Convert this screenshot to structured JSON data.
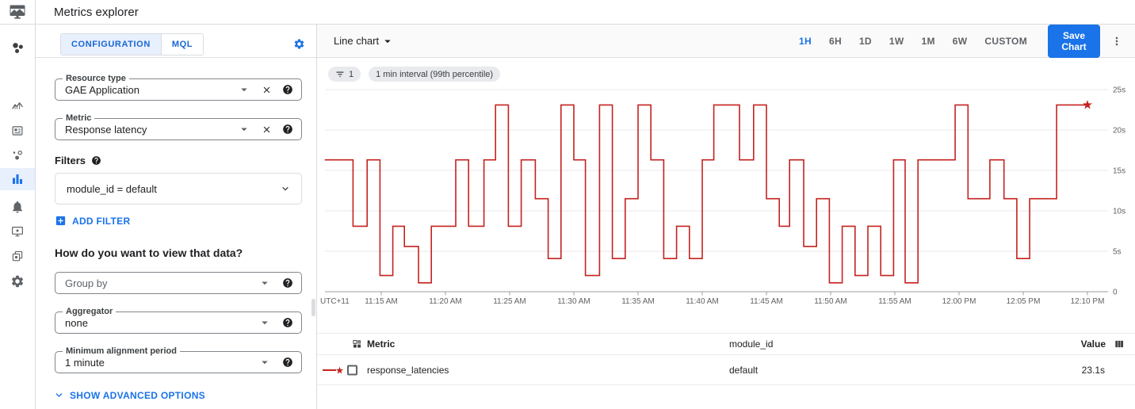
{
  "header": {
    "title": "Metrics explorer"
  },
  "sidebar": {
    "items": [
      {
        "icon": "overview-cluster-icon",
        "active": false
      },
      {
        "icon": "dashboards-chart-icon",
        "active": false
      },
      {
        "icon": "integrations-card-icon",
        "active": false
      },
      {
        "icon": "services-bubbles-icon",
        "active": false
      },
      {
        "icon": "metrics-explorer-bars-icon",
        "active": true
      },
      {
        "icon": "alerting-bell-icon",
        "active": false
      },
      {
        "icon": "uptime-monitor-icon",
        "active": false
      },
      {
        "icon": "groups-layers-icon",
        "active": false
      },
      {
        "icon": "settings-gear-icon",
        "active": false
      }
    ]
  },
  "config_panel": {
    "tabs": [
      {
        "label": "CONFIGURATION",
        "active": true
      },
      {
        "label": "MQL",
        "active": false
      }
    ],
    "resource_type": {
      "label": "Resource type",
      "value": "GAE Application"
    },
    "metric": {
      "label": "Metric",
      "value": "Response latency"
    },
    "filters": {
      "label": "Filters",
      "chip": "module_id = default",
      "add_label": "ADD FILTER"
    },
    "view_heading": "How do you want to view that data?",
    "group_by": {
      "placeholder": "Group by"
    },
    "aggregator": {
      "label": "Aggregator",
      "value": "none"
    },
    "alignment": {
      "label": "Minimum alignment period",
      "value": "1 minute"
    },
    "advanced_label": "SHOW ADVANCED OPTIONS"
  },
  "toolbar": {
    "chart_type": "Line chart",
    "ranges": [
      "1H",
      "6H",
      "1D",
      "1W",
      "1M",
      "6W",
      "CUSTOM"
    ],
    "active_range": "1H",
    "save_label": "Save Chart"
  },
  "chips": {
    "filter_count": "1",
    "interval": "1 min interval (99th percentile)"
  },
  "chart_data": {
    "type": "line",
    "subtype": "step",
    "title": "",
    "xlabel": "",
    "ylabel": "",
    "legend_position": "table-below",
    "grid": "horizontal-only",
    "y_axis": {
      "side": "right",
      "min": 0,
      "max": 25,
      "values": [
        0,
        5,
        10,
        15,
        20,
        25
      ],
      "ticks": [
        "0",
        "5s",
        "10s",
        "15s",
        "20s",
        "25s"
      ]
    },
    "x_axis": {
      "tz_label": "UTC+11",
      "window_minutes": 60,
      "ticks": [
        {
          "m": 675,
          "label": "11:15 AM"
        },
        {
          "m": 680,
          "label": "11:20 AM"
        },
        {
          "m": 685,
          "label": "11:25 AM"
        },
        {
          "m": 690,
          "label": "11:30 AM"
        },
        {
          "m": 695,
          "label": "11:35 AM"
        },
        {
          "m": 700,
          "label": "11:40 AM"
        },
        {
          "m": 705,
          "label": "11:45 AM"
        },
        {
          "m": 710,
          "label": "11:50 AM"
        },
        {
          "m": 715,
          "label": "11:55 AM"
        },
        {
          "m": 720,
          "label": "12:00 PM"
        },
        {
          "m": 725,
          "label": "12:05 PM"
        },
        {
          "m": 730,
          "label": "12:10 PM"
        }
      ]
    },
    "series": [
      {
        "name": "response_latencies",
        "module_id": "default",
        "color": "#c5221f",
        "unit": "s",
        "end_marker": "star",
        "end_min": 730,
        "points": [
          [
            670.6,
            16.3
          ],
          [
            672.8,
            8.1
          ],
          [
            673.9,
            16.3
          ],
          [
            674.9,
            2.0
          ],
          [
            675.9,
            8.1
          ],
          [
            676.8,
            5.6
          ],
          [
            677.9,
            1.1
          ],
          [
            678.9,
            8.1
          ],
          [
            680.8,
            16.3
          ],
          [
            681.8,
            8.1
          ],
          [
            683.0,
            16.3
          ],
          [
            683.9,
            23.1
          ],
          [
            684.9,
            8.1
          ],
          [
            685.9,
            16.3
          ],
          [
            687.0,
            11.5
          ],
          [
            688.0,
            4.1
          ],
          [
            689.0,
            23.1
          ],
          [
            690.0,
            16.3
          ],
          [
            690.9,
            2.0
          ],
          [
            692.0,
            23.1
          ],
          [
            693.0,
            4.1
          ],
          [
            694.0,
            11.5
          ],
          [
            695.0,
            23.1
          ],
          [
            696.0,
            16.3
          ],
          [
            697.0,
            4.1
          ],
          [
            698.0,
            8.1
          ],
          [
            699.0,
            4.1
          ],
          [
            700.0,
            16.3
          ],
          [
            700.9,
            23.1
          ],
          [
            702.9,
            16.3
          ],
          [
            704.0,
            23.1
          ],
          [
            705.0,
            11.5
          ],
          [
            706.0,
            8.1
          ],
          [
            706.8,
            16.3
          ],
          [
            707.9,
            5.6
          ],
          [
            708.9,
            11.5
          ],
          [
            709.9,
            1.1
          ],
          [
            710.9,
            8.1
          ],
          [
            711.9,
            2.0
          ],
          [
            712.9,
            8.1
          ],
          [
            713.9,
            2.0
          ],
          [
            714.9,
            16.3
          ],
          [
            715.8,
            1.1
          ],
          [
            716.8,
            16.3
          ],
          [
            719.7,
            23.1
          ],
          [
            720.7,
            11.5
          ],
          [
            722.4,
            16.3
          ],
          [
            723.5,
            11.5
          ],
          [
            724.5,
            4.1
          ],
          [
            725.5,
            11.5
          ],
          [
            727.6,
            23.1
          ]
        ]
      }
    ]
  },
  "table": {
    "columns": [
      "Metric",
      "module_id",
      "Value"
    ],
    "rows": [
      {
        "metric": "response_latencies",
        "module_id": "default",
        "value": "23.1s"
      }
    ]
  },
  "colors": {
    "accent_blue": "#1a73e8",
    "tab_blue": "#1967d2",
    "tab_bg": "#e8f0fe",
    "chart_red": "#c5221f",
    "chip_bg": "#e8eaed",
    "border": "#dadce0",
    "axis_gray": "#9e9e9e"
  }
}
